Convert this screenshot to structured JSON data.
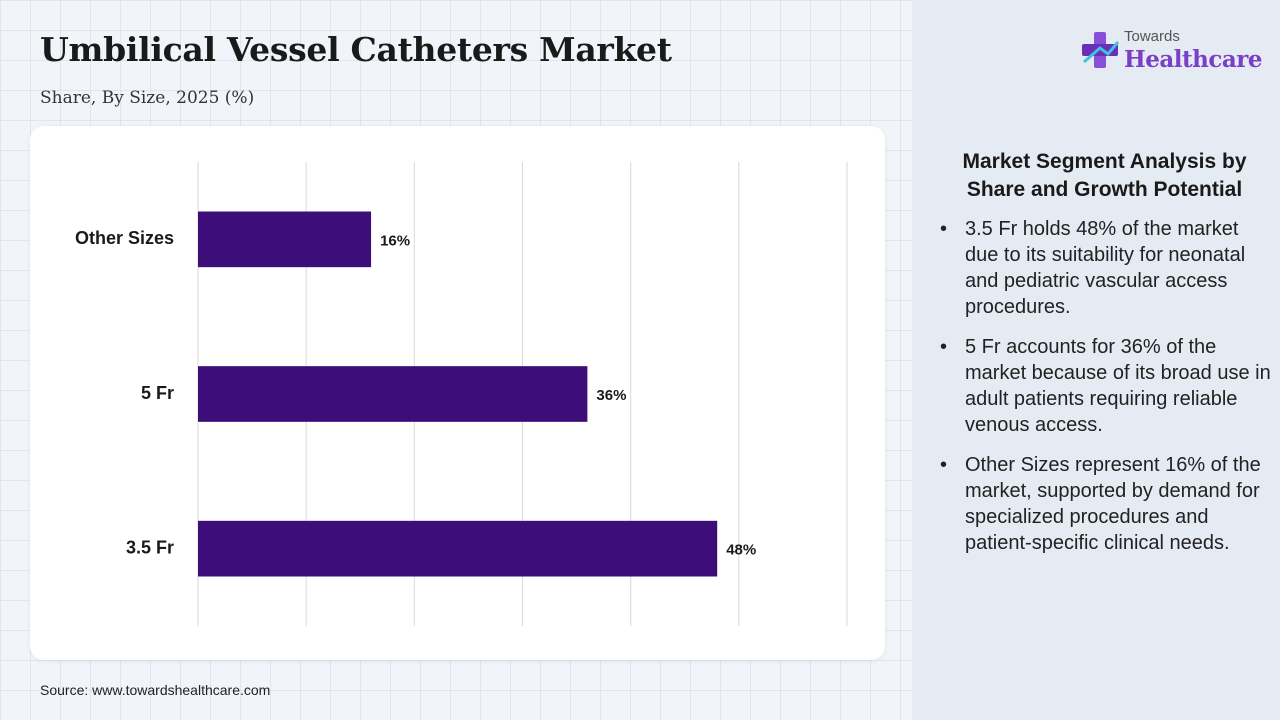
{
  "header": {
    "title": "Umbilical Vessel Catheters Market",
    "subtitle": "Share, By Size, 2025 (%)"
  },
  "chart_data": {
    "type": "bar",
    "orientation": "horizontal",
    "categories": [
      "Other Sizes",
      "5 Fr",
      "3.5 Fr"
    ],
    "values": [
      16,
      36,
      48
    ],
    "value_labels": [
      "16%",
      "36%",
      "48%"
    ],
    "xlim": [
      0,
      60
    ],
    "grid": true,
    "bar_color": "#3d0e7a"
  },
  "source": "Source: www.towardshealthcare.com",
  "logo": {
    "top_text": "Towards",
    "main_text": "Healthcare",
    "color": "#7b3fc7"
  },
  "panel": {
    "title": "Market Segment Analysis by Share and Growth Potential",
    "bullets": [
      "3.5 Fr holds 48% of the market due to its suitability for neonatal and pediatric vascular access procedures.",
      "5 Fr accounts for 36% of the market because of its broad use in adult patients requiring reliable venous access.",
      "Other Sizes represent 16% of the market, supported by demand for specialized procedures and patient-specific clinical needs."
    ]
  }
}
